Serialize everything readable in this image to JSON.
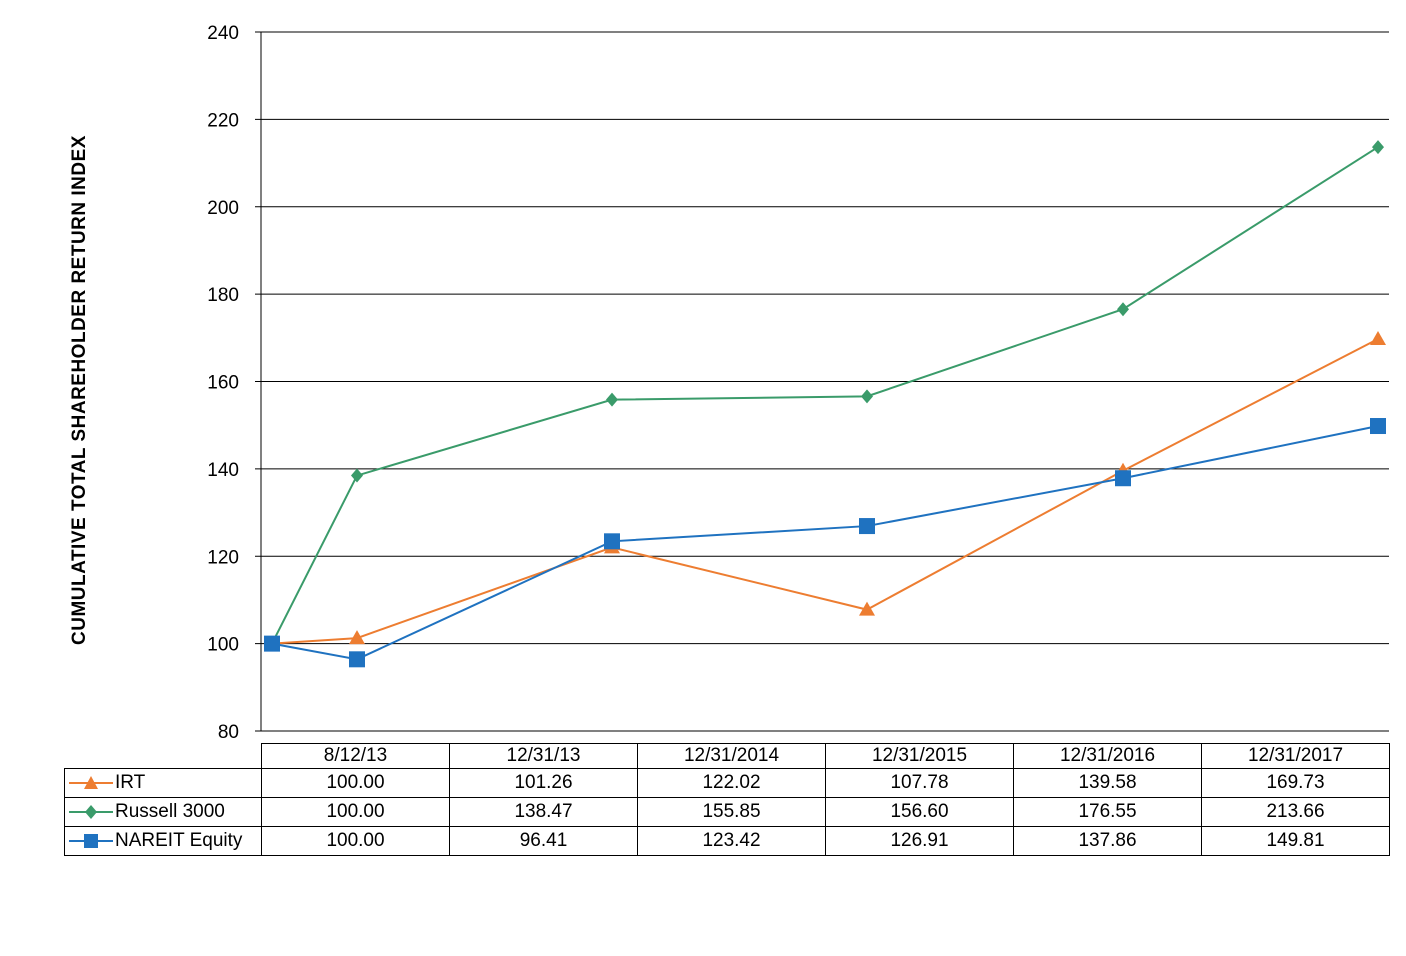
{
  "chart_data": {
    "type": "line",
    "ylabel": "CUMULATIVE  TOTAL SHAREHOLDER RETURN INDEX",
    "xlabel": "",
    "categories": [
      "8/12/13",
      "12/31/13",
      "12/31/2014",
      "12/31/2015",
      "12/31/2016",
      "12/31/2017"
    ],
    "ylim": [
      80,
      240
    ],
    "yticks": [
      80,
      100,
      120,
      140,
      160,
      180,
      200,
      220,
      240
    ],
    "grid": true,
    "legend_placement": "data table below chart",
    "series": [
      {
        "name": "IRT",
        "marker": "triangle",
        "color": "#ED7D31",
        "values": [
          100.0,
          101.26,
          122.02,
          107.78,
          139.58,
          169.73
        ],
        "labels": [
          "100.00",
          "101.26",
          "122.02",
          "107.78",
          "139.58",
          "169.73"
        ]
      },
      {
        "name": "Russell 3000",
        "marker": "diamond",
        "color": "#3A9B6A",
        "values": [
          100.0,
          138.47,
          155.85,
          156.6,
          176.55,
          213.66
        ],
        "labels": [
          "100.00",
          "138.47",
          "155.85",
          "156.60",
          "176.55",
          "213.66"
        ]
      },
      {
        "name": "NAREIT Equity",
        "marker": "square",
        "color": "#1F72C0",
        "values": [
          100.0,
          96.41,
          123.42,
          126.91,
          137.86,
          149.81
        ],
        "labels": [
          "100.00",
          "96.41",
          "123.42",
          "126.91",
          "137.86",
          "149.81"
        ]
      }
    ]
  }
}
